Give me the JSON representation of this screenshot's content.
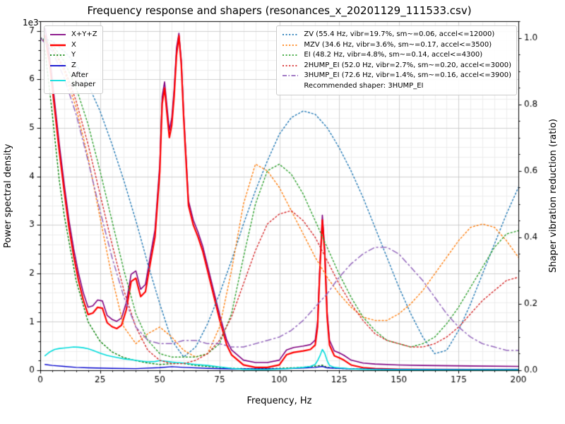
{
  "chart_data": {
    "type": "line",
    "title": "Frequency response and shapers (resonances_x_20201129_111533.csv)",
    "xlabel": "Frequency, Hz",
    "ylabel_left": "Power spectral density",
    "ylabel_right": "Shaper vibration reduction (ratio)",
    "y_left_offset_text": "1e3",
    "xlim": [
      0,
      200
    ],
    "ylim_left": [
      0,
      7200
    ],
    "ylim_right": [
      0,
      1.05
    ],
    "grid": "major+minor",
    "x_ticks": {
      "values": [
        0,
        25,
        50,
        75,
        100,
        125,
        150,
        175,
        200
      ],
      "labels": [
        "0",
        "25",
        "50",
        "75",
        "100",
        "125",
        "150",
        "175",
        "200"
      ]
    },
    "y_left_ticks": {
      "values": [
        0,
        1000,
        2000,
        3000,
        4000,
        5000,
        6000,
        7000
      ],
      "labels": [
        "0",
        "1",
        "2",
        "3",
        "4",
        "5",
        "6",
        "7"
      ]
    },
    "y_right_ticks": {
      "values": [
        0,
        0.2,
        0.4,
        0.6,
        0.8,
        1.0
      ],
      "labels": [
        "0.0",
        "0.2",
        "0.4",
        "0.6",
        "0.8",
        "1.0"
      ]
    },
    "minor_steps": {
      "x": 5,
      "y_left": 200,
      "y_right": 0.05
    },
    "legend_note": "Recommended shaper: 3HUMP_EI",
    "series": [
      {
        "name": "X+Y+Z",
        "legend": "psd",
        "axis": "left",
        "color": "#800080",
        "style": "solid",
        "width": 1.6,
        "x": [
          2,
          4,
          6,
          8,
          10,
          12,
          14,
          16,
          18,
          20,
          22,
          24,
          26,
          28,
          30,
          32,
          34,
          36,
          38,
          40,
          42,
          44,
          46,
          48,
          50,
          51,
          52,
          53,
          54,
          55,
          56,
          57,
          58,
          59,
          60,
          61,
          62,
          64,
          66,
          68,
          70,
          72,
          75,
          78,
          80,
          85,
          90,
          95,
          100,
          103,
          106,
          110,
          113,
          115,
          116,
          117,
          118,
          119,
          120,
          121,
          123,
          125,
          127,
          130,
          135,
          140,
          150,
          160,
          180,
          200
        ],
        "y": [
          7050,
          6450,
          5550,
          4650,
          3850,
          3100,
          2500,
          2000,
          1600,
          1300,
          1330,
          1450,
          1430,
          1130,
          1050,
          1010,
          1080,
          1400,
          1980,
          2050,
          1670,
          1770,
          2350,
          2900,
          4250,
          5650,
          5950,
          5450,
          4950,
          5200,
          5800,
          6650,
          6950,
          6400,
          5300,
          4400,
          3500,
          3100,
          2850,
          2550,
          2150,
          1750,
          1150,
          620,
          420,
          210,
          160,
          160,
          210,
          420,
          470,
          500,
          530,
          620,
          1000,
          2200,
          3200,
          2500,
          1200,
          620,
          400,
          360,
          310,
          210,
          150,
          130,
          110,
          100,
          90,
          80
        ]
      },
      {
        "name": "X",
        "legend": "psd",
        "axis": "left",
        "color": "#ff0000",
        "style": "solid",
        "width": 2.2,
        "x": [
          2,
          4,
          6,
          8,
          10,
          12,
          14,
          16,
          18,
          20,
          22,
          24,
          26,
          28,
          30,
          32,
          34,
          36,
          38,
          40,
          42,
          44,
          46,
          48,
          50,
          51,
          52,
          53,
          54,
          55,
          56,
          57,
          58,
          59,
          60,
          61,
          62,
          64,
          66,
          68,
          70,
          72,
          75,
          78,
          80,
          85,
          90,
          95,
          100,
          103,
          106,
          110,
          113,
          115,
          116,
          117,
          118,
          119,
          120,
          121,
          123,
          125,
          127,
          130,
          135,
          140,
          150,
          160,
          180,
          200
        ],
        "y": [
          6900,
          6300,
          5400,
          4500,
          3700,
          2950,
          2350,
          1850,
          1450,
          1150,
          1180,
          1300,
          1280,
          980,
          900,
          860,
          930,
          1250,
          1830,
          1900,
          1520,
          1620,
          2200,
          2750,
          4100,
          5500,
          5820,
          5300,
          4800,
          5050,
          5650,
          6500,
          6900,
          6300,
          5200,
          4300,
          3400,
          3000,
          2750,
          2450,
          2050,
          1650,
          1050,
          520,
          320,
          110,
          60,
          60,
          110,
          320,
          370,
          400,
          430,
          520,
          900,
          2100,
          3100,
          2400,
          1100,
          520,
          300,
          260,
          210,
          110,
          55,
          35,
          20,
          15,
          12,
          10
        ]
      },
      {
        "name": "Y",
        "legend": "psd",
        "axis": "left",
        "color": "#008000",
        "style": "dotted",
        "width": 1.4,
        "x": [
          2,
          5,
          8,
          10,
          15,
          20,
          25,
          30,
          35,
          40,
          45,
          50,
          55,
          58,
          60,
          65,
          70,
          75,
          80,
          90,
          100,
          110,
          115,
          118,
          120,
          125,
          130,
          140,
          150,
          175,
          200
        ],
        "y": [
          6600,
          5300,
          3900,
          3200,
          1850,
          1000,
          600,
          380,
          260,
          200,
          150,
          120,
          135,
          150,
          140,
          100,
          80,
          60,
          40,
          30,
          40,
          60,
          85,
          105,
          60,
          40,
          30,
          20,
          15,
          12,
          10
        ]
      },
      {
        "name": "Z",
        "legend": "psd",
        "axis": "left",
        "color": "#0000cd",
        "style": "solid",
        "width": 1.4,
        "x": [
          2,
          5,
          10,
          15,
          20,
          30,
          40,
          50,
          55,
          60,
          70,
          80,
          100,
          110,
          115,
          118,
          120,
          130,
          150,
          175,
          200
        ],
        "y": [
          120,
          100,
          80,
          60,
          50,
          40,
          35,
          55,
          75,
          60,
          40,
          30,
          30,
          45,
          60,
          80,
          50,
          30,
          20,
          15,
          15
        ]
      },
      {
        "name": "After\nshaper",
        "legend": "psd",
        "axis": "left",
        "color": "#00dcdc",
        "style": "solid",
        "width": 1.6,
        "x": [
          2,
          4,
          6,
          8,
          10,
          12,
          14,
          16,
          18,
          20,
          22,
          25,
          28,
          30,
          33,
          35,
          38,
          40,
          43,
          45,
          48,
          50,
          52,
          55,
          57,
          60,
          63,
          65,
          70,
          75,
          80,
          85,
          90,
          95,
          100,
          105,
          110,
          113,
          115,
          116,
          117,
          118,
          119,
          120,
          121,
          123,
          125,
          128,
          130,
          135,
          140,
          150,
          175,
          200
        ],
        "y": [
          300,
          380,
          430,
          450,
          460,
          470,
          480,
          475,
          465,
          445,
          410,
          355,
          305,
          285,
          255,
          235,
          220,
          205,
          185,
          175,
          180,
          200,
          190,
          170,
          160,
          150,
          130,
          120,
          100,
          70,
          40,
          20,
          15,
          15,
          25,
          40,
          60,
          80,
          120,
          200,
          300,
          430,
          350,
          200,
          100,
          60,
          50,
          40,
          30,
          20,
          15,
          10,
          8,
          8
        ]
      },
      {
        "name": "ZV (55.4 Hz, vibr=19.7%, sm~=0.06, accel<=12000)",
        "legend": "shapers",
        "axis": "right",
        "color": "#1f77b4",
        "style": "dotted",
        "width": 1.4,
        "x": [
          0,
          5,
          10,
          15,
          20,
          25,
          30,
          35,
          40,
          45,
          50,
          55,
          60,
          65,
          70,
          75,
          80,
          85,
          90,
          95,
          100,
          105,
          110,
          115,
          120,
          125,
          130,
          135,
          140,
          145,
          150,
          155,
          160,
          165,
          170,
          175,
          180,
          185,
          190,
          195,
          200
        ],
        "y": [
          1.0,
          0.99,
          0.96,
          0.92,
          0.86,
          0.78,
          0.68,
          0.57,
          0.45,
          0.32,
          0.2,
          0.09,
          0.04,
          0.07,
          0.14,
          0.23,
          0.33,
          0.44,
          0.54,
          0.63,
          0.71,
          0.76,
          0.78,
          0.77,
          0.73,
          0.67,
          0.6,
          0.52,
          0.43,
          0.34,
          0.25,
          0.17,
          0.1,
          0.05,
          0.06,
          0.12,
          0.2,
          0.29,
          0.38,
          0.47,
          0.55
        ]
      },
      {
        "name": "MZV (34.6 Hz, vibr=3.6%, sm~=0.17, accel<=3500)",
        "legend": "shapers",
        "axis": "right",
        "color": "#ff7f0e",
        "style": "dotted",
        "width": 1.4,
        "x": [
          0,
          5,
          10,
          15,
          20,
          25,
          30,
          35,
          40,
          45,
          50,
          55,
          60,
          65,
          70,
          75,
          80,
          85,
          90,
          95,
          100,
          105,
          110,
          115,
          120,
          125,
          130,
          135,
          140,
          145,
          150,
          155,
          160,
          165,
          170,
          175,
          180,
          185,
          190,
          195,
          200
        ],
        "y": [
          1.0,
          0.97,
          0.9,
          0.79,
          0.64,
          0.46,
          0.28,
          0.13,
          0.08,
          0.11,
          0.13,
          0.1,
          0.06,
          0.04,
          0.05,
          0.13,
          0.3,
          0.5,
          0.62,
          0.6,
          0.55,
          0.48,
          0.41,
          0.34,
          0.28,
          0.23,
          0.19,
          0.16,
          0.15,
          0.15,
          0.17,
          0.2,
          0.24,
          0.29,
          0.34,
          0.39,
          0.43,
          0.44,
          0.43,
          0.39,
          0.34
        ]
      },
      {
        "name": "EI (48.2 Hz, vibr=4.8%, sm~=0.14, accel<=4300)",
        "legend": "shapers",
        "axis": "right",
        "color": "#2ca02c",
        "style": "dotted",
        "width": 1.4,
        "x": [
          0,
          5,
          10,
          15,
          20,
          25,
          30,
          35,
          40,
          45,
          50,
          55,
          60,
          65,
          70,
          75,
          80,
          85,
          90,
          95,
          100,
          105,
          110,
          115,
          120,
          125,
          130,
          135,
          140,
          145,
          150,
          155,
          160,
          165,
          170,
          175,
          180,
          185,
          190,
          195,
          200
        ],
        "y": [
          1.0,
          0.98,
          0.93,
          0.85,
          0.74,
          0.6,
          0.45,
          0.3,
          0.17,
          0.09,
          0.05,
          0.04,
          0.04,
          0.04,
          0.05,
          0.08,
          0.17,
          0.34,
          0.5,
          0.6,
          0.62,
          0.59,
          0.53,
          0.45,
          0.37,
          0.29,
          0.22,
          0.16,
          0.12,
          0.09,
          0.08,
          0.07,
          0.08,
          0.1,
          0.14,
          0.19,
          0.25,
          0.31,
          0.37,
          0.41,
          0.42
        ]
      },
      {
        "name": "2HUMP_EI (52.0 Hz, vibr=2.7%, sm~=0.20, accel<=3000)",
        "legend": "shapers",
        "axis": "right",
        "color": "#d62728",
        "style": "dotted",
        "width": 1.4,
        "x": [
          0,
          5,
          10,
          15,
          20,
          25,
          30,
          35,
          40,
          45,
          50,
          55,
          60,
          65,
          70,
          75,
          80,
          85,
          90,
          95,
          100,
          105,
          110,
          115,
          120,
          125,
          130,
          135,
          140,
          145,
          150,
          155,
          160,
          165,
          170,
          175,
          180,
          185,
          190,
          195,
          200
        ],
        "y": [
          1.0,
          0.97,
          0.91,
          0.81,
          0.68,
          0.53,
          0.38,
          0.24,
          0.13,
          0.06,
          0.03,
          0.02,
          0.02,
          0.03,
          0.05,
          0.09,
          0.16,
          0.26,
          0.36,
          0.44,
          0.47,
          0.48,
          0.45,
          0.4,
          0.33,
          0.26,
          0.2,
          0.15,
          0.11,
          0.09,
          0.08,
          0.07,
          0.07,
          0.08,
          0.1,
          0.13,
          0.17,
          0.21,
          0.24,
          0.27,
          0.28
        ]
      },
      {
        "name": "3HUMP_EI (72.6 Hz, vibr=1.4%, sm~=0.16, accel<=3900)",
        "legend": "shapers",
        "axis": "right",
        "color": "#9467bd",
        "style": "dashdot",
        "width": 1.5,
        "x": [
          0,
          5,
          10,
          15,
          20,
          25,
          30,
          35,
          40,
          45,
          50,
          55,
          60,
          65,
          70,
          75,
          80,
          85,
          90,
          95,
          100,
          105,
          110,
          115,
          120,
          125,
          130,
          135,
          140,
          145,
          150,
          155,
          160,
          165,
          170,
          175,
          180,
          185,
          190,
          195,
          200
        ],
        "y": [
          1.0,
          0.96,
          0.88,
          0.77,
          0.63,
          0.48,
          0.34,
          0.22,
          0.13,
          0.09,
          0.08,
          0.08,
          0.09,
          0.09,
          0.08,
          0.08,
          0.07,
          0.07,
          0.08,
          0.09,
          0.1,
          0.12,
          0.15,
          0.19,
          0.23,
          0.28,
          0.32,
          0.35,
          0.37,
          0.37,
          0.35,
          0.31,
          0.27,
          0.22,
          0.17,
          0.13,
          0.1,
          0.08,
          0.07,
          0.06,
          0.06
        ]
      }
    ]
  }
}
